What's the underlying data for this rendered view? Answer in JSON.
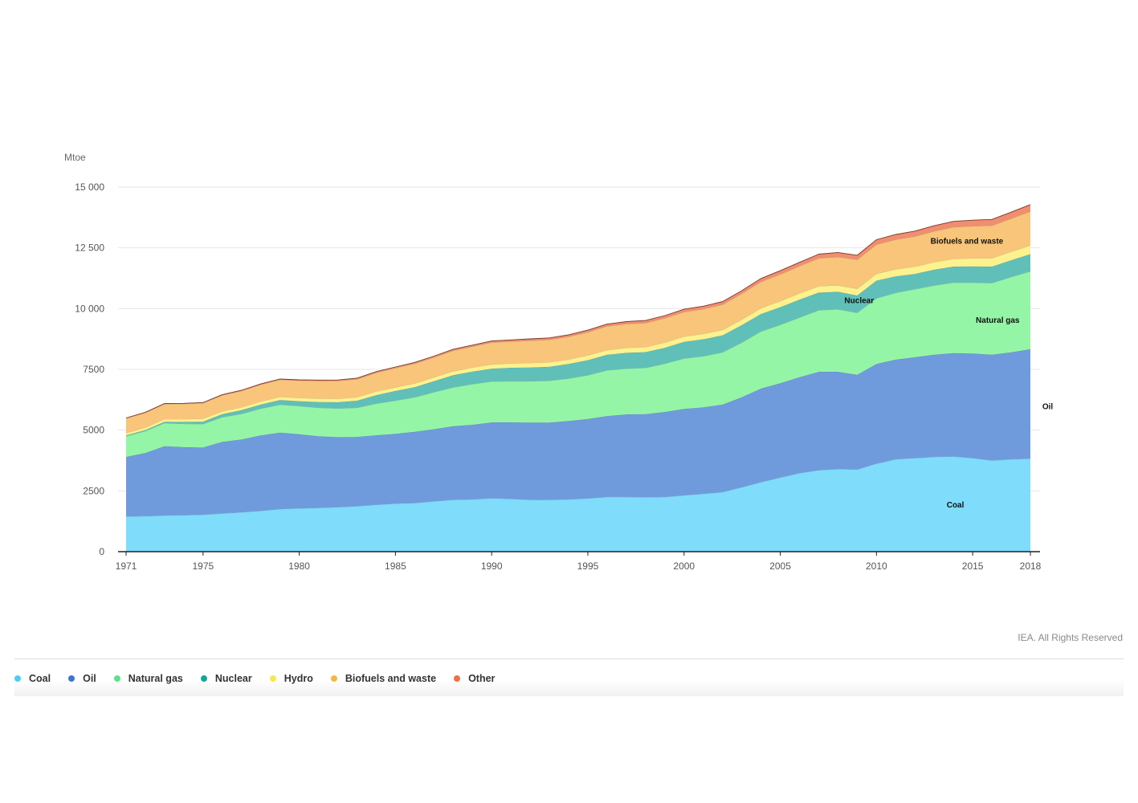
{
  "unit": "Mtoe",
  "copyright": "IEA. All Rights Reserved",
  "legend": [
    {
      "label": "Coal",
      "color": "#4fcdf0"
    },
    {
      "label": "Oil",
      "color": "#3d73d1"
    },
    {
      "label": "Natural gas",
      "color": "#5fe08b"
    },
    {
      "label": "Nuclear",
      "color": "#15a59a"
    },
    {
      "label": "Hydro",
      "color": "#f7e948"
    },
    {
      "label": "Biofuels and waste",
      "color": "#f7b549"
    },
    {
      "label": "Other",
      "color": "#ef6f47"
    }
  ],
  "chart_data": {
    "type": "area",
    "stacked": true,
    "xlabel": "",
    "ylabel": "Mtoe",
    "ylim": [
      0,
      15000
    ],
    "xlim": [
      1971,
      2018
    ],
    "grid": true,
    "y_ticks": [
      {
        "value": 0,
        "label": "0"
      },
      {
        "value": 2500,
        "label": "2500"
      },
      {
        "value": 5000,
        "label": "5000"
      },
      {
        "value": 7500,
        "label": "7500"
      },
      {
        "value": 10000,
        "label": "10 000"
      },
      {
        "value": 12500,
        "label": "12 500"
      },
      {
        "value": 15000,
        "label": "15 000"
      }
    ],
    "x_ticks": [
      1971,
      1975,
      1980,
      1985,
      1990,
      1995,
      2000,
      2005,
      2010,
      2015,
      2018
    ],
    "x": [
      1971,
      1972,
      1973,
      1974,
      1975,
      1976,
      1977,
      1978,
      1979,
      1980,
      1981,
      1982,
      1983,
      1984,
      1985,
      1986,
      1987,
      1988,
      1989,
      1990,
      1991,
      1992,
      1993,
      1994,
      1995,
      1996,
      1997,
      1998,
      1999,
      2000,
      2001,
      2002,
      2003,
      2004,
      2005,
      2006,
      2007,
      2008,
      2009,
      2010,
      2011,
      2012,
      2013,
      2014,
      2015,
      2016,
      2017,
      2018
    ],
    "series": [
      {
        "name": "Coal",
        "color": "#7fdcfb",
        "values": [
          1450,
          1460,
          1490,
          1500,
          1520,
          1570,
          1620,
          1680,
          1750,
          1780,
          1800,
          1830,
          1870,
          1930,
          1980,
          2000,
          2070,
          2130,
          2150,
          2200,
          2170,
          2130,
          2130,
          2150,
          2190,
          2250,
          2250,
          2240,
          2250,
          2320,
          2380,
          2450,
          2650,
          2860,
          3050,
          3230,
          3350,
          3400,
          3380,
          3620,
          3800,
          3850,
          3900,
          3920,
          3850,
          3750,
          3800,
          3830
        ]
      },
      {
        "name": "Oil",
        "color": "#6f9bdd",
        "values": [
          2450,
          2600,
          2850,
          2800,
          2770,
          2950,
          3000,
          3100,
          3150,
          3050,
          2950,
          2880,
          2850,
          2860,
          2870,
          2930,
          2970,
          3030,
          3070,
          3120,
          3150,
          3180,
          3180,
          3230,
          3270,
          3330,
          3400,
          3420,
          3500,
          3550,
          3560,
          3600,
          3700,
          3850,
          3880,
          3950,
          4050,
          4000,
          3900,
          4100,
          4100,
          4150,
          4200,
          4250,
          4300,
          4350,
          4400,
          4500
        ]
      },
      {
        "name": "Natural gas",
        "color": "#95f5a6",
        "values": [
          850,
          900,
          950,
          960,
          960,
          1010,
          1050,
          1100,
          1150,
          1160,
          1170,
          1180,
          1200,
          1300,
          1360,
          1420,
          1520,
          1600,
          1670,
          1680,
          1690,
          1700,
          1720,
          1740,
          1800,
          1880,
          1880,
          1900,
          1980,
          2080,
          2100,
          2150,
          2250,
          2350,
          2400,
          2450,
          2530,
          2570,
          2550,
          2700,
          2750,
          2800,
          2850,
          2900,
          2920,
          2950,
          3100,
          3200
        ]
      },
      {
        "name": "Nuclear",
        "color": "#60c0b9",
        "values": [
          30,
          45,
          55,
          80,
          100,
          125,
          150,
          175,
          190,
          200,
          240,
          260,
          290,
          350,
          400,
          420,
          450,
          500,
          520,
          530,
          555,
          570,
          580,
          600,
          620,
          640,
          650,
          650,
          660,
          680,
          700,
          700,
          720,
          720,
          730,
          740,
          730,
          720,
          710,
          730,
          680,
          630,
          650,
          660,
          670,
          680,
          690,
          710
        ]
      },
      {
        "name": "Hydro",
        "color": "#fdf28d",
        "values": [
          100,
          100,
          110,
          110,
          120,
          120,
          120,
          125,
          130,
          135,
          140,
          140,
          145,
          150,
          150,
          155,
          160,
          160,
          165,
          175,
          178,
          180,
          185,
          188,
          195,
          200,
          205,
          208,
          215,
          220,
          220,
          225,
          228,
          240,
          250,
          255,
          260,
          270,
          275,
          285,
          290,
          300,
          310,
          320,
          330,
          340,
          350,
          360
        ]
      },
      {
        "name": "Biofuels and waste",
        "color": "#f8c57a",
        "values": [
          600,
          610,
          620,
          630,
          640,
          660,
          670,
          690,
          700,
          710,
          720,
          730,
          740,
          770,
          790,
          810,
          820,
          850,
          860,
          900,
          900,
          920,
          920,
          930,
          950,
          970,
          980,
          990,
          1000,
          1010,
          1020,
          1040,
          1060,
          1080,
          1100,
          1120,
          1150,
          1170,
          1190,
          1200,
          1220,
          1240,
          1270,
          1300,
          1320,
          1340,
          1360,
          1400
        ]
      },
      {
        "name": "Other",
        "color": "#f08e6f",
        "values": [
          20,
          20,
          22,
          24,
          25,
          28,
          30,
          33,
          35,
          37,
          40,
          43,
          45,
          48,
          50,
          53,
          55,
          60,
          63,
          65,
          70,
          75,
          80,
          85,
          90,
          95,
          100,
          105,
          110,
          115,
          120,
          125,
          130,
          140,
          150,
          160,
          170,
          180,
          190,
          200,
          210,
          220,
          230,
          240,
          250,
          260,
          270,
          280
        ]
      }
    ],
    "annotations": [
      {
        "text": "Biofuels and waste",
        "x": 2014.7,
        "y": 12800
      },
      {
        "text": "Nuclear",
        "x": 2009.1,
        "y": 10350
      },
      {
        "text": "Natural gas",
        "x": 2016.3,
        "y": 9550
      },
      {
        "text": "Oil",
        "x": 2018.9,
        "y": 6000
      },
      {
        "text": "Coal",
        "x": 2014.1,
        "y": 1950
      }
    ]
  }
}
